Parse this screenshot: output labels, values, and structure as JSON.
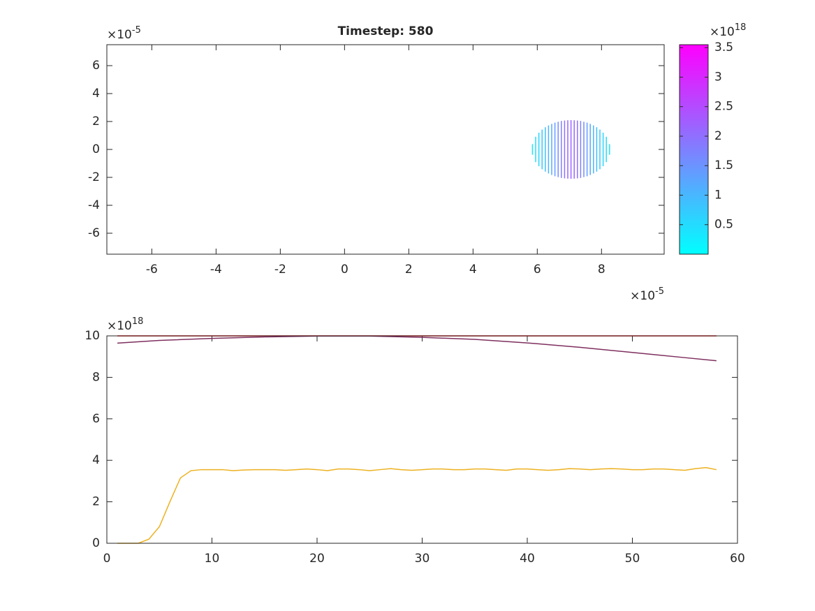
{
  "chart_data": [
    {
      "type": "segments",
      "title": "Timestep: 580",
      "x_exponent": {
        "base": "×10",
        "power": "-5"
      },
      "y_exponent": {
        "base": "×10",
        "power": "-5"
      },
      "xlim": [
        -7.4,
        9.95
      ],
      "ylim": [
        -7.5,
        7.5
      ],
      "xticks": [
        -6,
        -4,
        -2,
        0,
        2,
        4,
        6,
        8
      ],
      "yticks": [
        -6,
        -4,
        -2,
        0,
        2,
        4,
        6
      ],
      "x": [
        5.85,
        5.95,
        6.05,
        6.15,
        6.25,
        6.35,
        6.45,
        6.55,
        6.65,
        6.75,
        6.85,
        6.95,
        7.05,
        7.15,
        7.25,
        7.35,
        7.45,
        7.55,
        7.65,
        7.75,
        7.85,
        7.95,
        8.05,
        8.15,
        8.25
      ],
      "y0": [
        -0.38,
        -0.91,
        -1.2,
        -1.42,
        -1.59,
        -1.72,
        -1.83,
        -1.92,
        -1.98,
        -2.04,
        -2.07,
        -2.09,
        -2.1,
        -2.09,
        -2.07,
        -2.04,
        -1.98,
        -1.92,
        -1.83,
        -1.72,
        -1.59,
        -1.42,
        -1.2,
        -0.91,
        -0.38
      ],
      "y1": [
        0.38,
        0.91,
        1.2,
        1.42,
        1.59,
        1.72,
        1.83,
        1.92,
        1.98,
        2.04,
        2.07,
        2.09,
        2.1,
        2.09,
        2.07,
        2.04,
        1.98,
        1.92,
        1.83,
        1.72,
        1.59,
        1.42,
        1.2,
        0.91,
        0.38
      ],
      "c": [
        0.3,
        0.45,
        0.6,
        0.75,
        0.9,
        1.05,
        1.2,
        1.4,
        1.6,
        1.8,
        2.0,
        2.1,
        2.2,
        2.1,
        2.0,
        1.8,
        1.6,
        1.4,
        1.2,
        1.05,
        0.9,
        0.75,
        0.6,
        0.45,
        0.3
      ],
      "colorbar": {
        "clim": [
          0,
          3.55
        ],
        "ticks": [
          0.5,
          1,
          1.5,
          2,
          2.5,
          3,
          3.5
        ],
        "colormap": [
          "#00ffff",
          "#ff00ff"
        ],
        "exponent": {
          "base": "×10",
          "power": "18"
        }
      }
    },
    {
      "type": "line",
      "y_exponent": {
        "base": "×10",
        "power": "18"
      },
      "xlim": [
        0,
        60
      ],
      "ylim": [
        0,
        10
      ],
      "xticks": [
        0,
        10,
        20,
        30,
        40,
        50,
        60
      ],
      "yticks": [
        0,
        2,
        4,
        6,
        8,
        10
      ],
      "series": [
        {
          "color": "#ff0000",
          "x": [
            1,
            58
          ],
          "values": [
            10,
            10
          ]
        },
        {
          "color": "#7e2f5e",
          "x": [
            1,
            5,
            10,
            15,
            20,
            25,
            30,
            35,
            40,
            45,
            50,
            55,
            58
          ],
          "values": [
            9.65,
            9.78,
            9.88,
            9.95,
            9.99,
            9.99,
            9.93,
            9.83,
            9.66,
            9.45,
            9.2,
            8.95,
            8.8
          ]
        },
        {
          "color": "#edb120",
          "x": [
            1,
            2,
            3,
            4,
            5,
            6,
            7,
            8,
            9,
            10,
            11,
            12,
            13,
            14,
            15,
            16,
            17,
            18,
            19,
            20,
            21,
            22,
            23,
            24,
            25,
            26,
            27,
            28,
            29,
            30,
            31,
            32,
            33,
            34,
            35,
            36,
            37,
            38,
            39,
            40,
            41,
            42,
            43,
            44,
            45,
            46,
            47,
            48,
            49,
            50,
            51,
            52,
            53,
            54,
            55,
            56,
            57,
            58
          ],
          "values": [
            0,
            0,
            0,
            0.2,
            0.8,
            2.0,
            3.15,
            3.5,
            3.55,
            3.55,
            3.55,
            3.5,
            3.53,
            3.55,
            3.55,
            3.55,
            3.52,
            3.55,
            3.58,
            3.55,
            3.5,
            3.58,
            3.58,
            3.55,
            3.5,
            3.55,
            3.6,
            3.55,
            3.52,
            3.55,
            3.58,
            3.58,
            3.55,
            3.55,
            3.58,
            3.58,
            3.55,
            3.52,
            3.58,
            3.58,
            3.55,
            3.52,
            3.55,
            3.6,
            3.58,
            3.55,
            3.58,
            3.6,
            3.58,
            3.55,
            3.55,
            3.58,
            3.58,
            3.55,
            3.52,
            3.6,
            3.65,
            3.55
          ]
        }
      ]
    }
  ]
}
